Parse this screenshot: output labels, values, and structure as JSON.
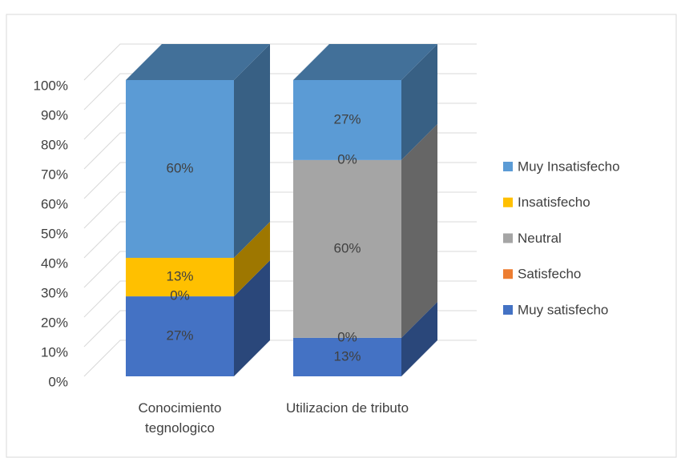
{
  "chart_data": {
    "type": "bar3d_stacked",
    "categories": [
      "Conocimiento tegnologico",
      "Utilizacion de tributo"
    ],
    "series": [
      {
        "name": "Muy satisfecho",
        "color": "#4472c4",
        "values": [
          27,
          13
        ],
        "value_labels": [
          "27%",
          "13%"
        ]
      },
      {
        "name": "Satisfecho",
        "color": "#ed7d31",
        "values": [
          0,
          0
        ],
        "value_labels": [
          "0%",
          "0%"
        ]
      },
      {
        "name": "Neutral",
        "color": "#a5a5a5",
        "values": [
          null,
          60
        ],
        "value_labels": [
          null,
          "60%"
        ]
      },
      {
        "name": "Insatisfecho",
        "color": "#ffc000",
        "values": [
          13,
          0
        ],
        "value_labels": [
          "13%",
          "0%"
        ]
      },
      {
        "name": "Muy Insatisfecho",
        "color": "#5b9bd5",
        "values": [
          60,
          27
        ],
        "value_labels": [
          "60%",
          "27%"
        ]
      }
    ],
    "ylim": [
      0,
      100
    ],
    "yticks": [
      {
        "value": 0,
        "label": "0%"
      },
      {
        "value": 10,
        "label": "10%"
      },
      {
        "value": 20,
        "label": "20%"
      },
      {
        "value": 30,
        "label": "30%"
      },
      {
        "value": 40,
        "label": "40%"
      },
      {
        "value": 50,
        "label": "50%"
      },
      {
        "value": 60,
        "label": "60%"
      },
      {
        "value": 70,
        "label": "70%"
      },
      {
        "value": 80,
        "label": "80%"
      },
      {
        "value": 90,
        "label": "90%"
      },
      {
        "value": 100,
        "label": "100%"
      }
    ],
    "grid": true,
    "legend": "right"
  }
}
